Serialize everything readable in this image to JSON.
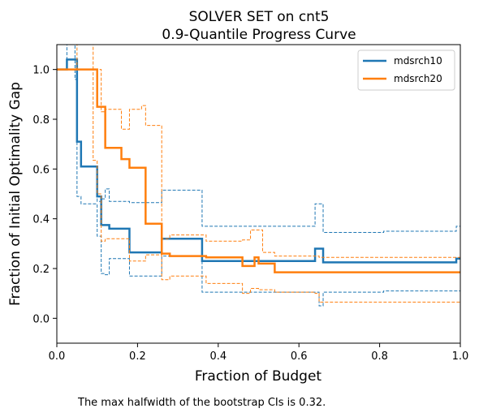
{
  "chart_data": {
    "type": "line",
    "step": true,
    "title": "SOLVER SET on cnt5",
    "subtitle": "0.9-Quantile Progress Curve",
    "xlabel": "Fraction of Budget",
    "ylabel": "Fraction of Initial Optimality Gap",
    "xlim": [
      0,
      1
    ],
    "ylim": [
      -0.1,
      1.1
    ],
    "xticks": [
      0,
      0.2,
      0.4,
      0.6,
      0.8,
      1
    ],
    "xtick_labels": [
      "0.0",
      "0.2",
      "0.4",
      "0.6",
      "0.8",
      "1.0"
    ],
    "yticks": [
      0,
      0.2,
      0.4,
      0.6,
      0.8,
      1.0
    ],
    "ytick_labels": [
      "0.0",
      "0.2",
      "0.4",
      "0.6",
      "0.8",
      "1.0"
    ],
    "legend_placement": "top-right",
    "grid": false,
    "series": [
      {
        "name": "mdsrch10",
        "color": "#1f77b4",
        "x": [
          0,
          0.025,
          0.05,
          0.06,
          0.1,
          0.11,
          0.13,
          0.18,
          0.26,
          0.36,
          0.64,
          0.66,
          0.99,
          1.0
        ],
        "y": [
          1.0,
          1.04,
          0.71,
          0.61,
          0.49,
          0.375,
          0.36,
          0.265,
          0.32,
          0.23,
          0.28,
          0.225,
          0.24,
          0.24
        ],
        "ci_lower": {
          "x": [
            0,
            0.05,
            0.06,
            0.1,
            0.11,
            0.12,
            0.13,
            0.18,
            0.26,
            0.36,
            0.65,
            0.66,
            0.81,
            1.0
          ],
          "y": [
            1.0,
            0.49,
            0.46,
            0.33,
            0.18,
            0.175,
            0.24,
            0.17,
            0.25,
            0.105,
            0.05,
            0.105,
            0.11,
            0.11
          ]
        },
        "ci_upper": {
          "x": [
            0,
            0.025,
            0.045,
            0.05,
            0.06,
            0.1,
            0.11,
            0.12,
            0.13,
            0.18,
            0.26,
            0.36,
            0.64,
            0.66,
            0.81,
            0.99,
            1.0
          ],
          "y": [
            1.0,
            1.1,
            0.96,
            0.71,
            0.61,
            0.47,
            0.48,
            0.52,
            0.47,
            0.465,
            0.515,
            0.37,
            0.46,
            0.345,
            0.35,
            0.37,
            0.37
          ]
        }
      },
      {
        "name": "mdsrch20",
        "color": "#ff7f0e",
        "x": [
          0,
          0.1,
          0.12,
          0.16,
          0.18,
          0.22,
          0.26,
          0.28,
          0.37,
          0.46,
          0.49,
          0.5,
          0.54,
          1.0
        ],
        "y": [
          1.0,
          0.85,
          0.685,
          0.64,
          0.605,
          0.38,
          0.26,
          0.25,
          0.245,
          0.21,
          0.245,
          0.22,
          0.185,
          0.185
        ],
        "ci_lower": {
          "x": [
            0,
            0.09,
            0.1,
            0.11,
            0.12,
            0.18,
            0.22,
            0.26,
            0.28,
            0.37,
            0.46,
            0.48,
            0.5,
            0.54,
            0.64,
            0.65,
            1.0
          ],
          "y": [
            1.0,
            0.635,
            0.5,
            0.31,
            0.32,
            0.23,
            0.255,
            0.155,
            0.17,
            0.14,
            0.1,
            0.12,
            0.115,
            0.105,
            0.1,
            0.065,
            0.065
          ]
        },
        "ci_upper": {
          "x": [
            0,
            0.05,
            0.09,
            0.11,
            0.12,
            0.16,
            0.18,
            0.21,
            0.22,
            0.26,
            0.28,
            0.37,
            0.46,
            0.48,
            0.51,
            0.54,
            0.65,
            1.0
          ],
          "y": [
            1.0,
            1.1,
            1.0,
            0.83,
            0.84,
            0.76,
            0.84,
            0.855,
            0.775,
            0.32,
            0.335,
            0.31,
            0.315,
            0.355,
            0.265,
            0.25,
            0.245,
            0.245
          ]
        }
      }
    ],
    "footnote": "The max halfwidth of the bootstrap CIs is 0.32."
  }
}
